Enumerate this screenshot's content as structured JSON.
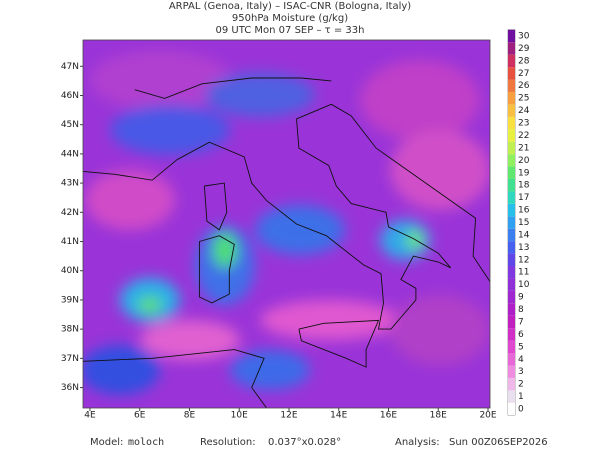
{
  "header": {
    "lines": [
      "ARPAL (Genoa, Italy)  –  ISAC-CNR (Bologna, Italy)",
      "950hPa Moisture (g/kg)",
      "09 UTC Mon 07 SEP  –  τ = 33h"
    ]
  },
  "map": {
    "xlim": [
      3.72,
      20.08
    ],
    "ylim": [
      35.3,
      47.9
    ],
    "xticks": [
      {
        "value": 4,
        "label": "4E"
      },
      {
        "value": 6,
        "label": "6E"
      },
      {
        "value": 8,
        "label": "8E"
      },
      {
        "value": 10,
        "label": "10E"
      },
      {
        "value": 12,
        "label": "12E"
      },
      {
        "value": 14,
        "label": "14E"
      },
      {
        "value": 16,
        "label": "16E"
      },
      {
        "value": 18,
        "label": "18E"
      },
      {
        "value": 20,
        "label": "20E"
      }
    ],
    "yticks": [
      {
        "value": 36,
        "label": "36N"
      },
      {
        "value": 37,
        "label": "37N"
      },
      {
        "value": 38,
        "label": "38N"
      },
      {
        "value": 39,
        "label": "39N"
      },
      {
        "value": 40,
        "label": "40N"
      },
      {
        "value": 41,
        "label": "41N"
      },
      {
        "value": 42,
        "label": "42N"
      },
      {
        "value": 43,
        "label": "43N"
      },
      {
        "value": 44,
        "label": "44N"
      },
      {
        "value": 45,
        "label": "45N"
      },
      {
        "value": 46,
        "label": "46N"
      },
      {
        "value": 47,
        "label": "47N"
      }
    ],
    "colorbar": {
      "lim": [
        -0.5,
        30.5
      ],
      "ticks": [
        0,
        1,
        2,
        3,
        4,
        5,
        6,
        7,
        8,
        9,
        10,
        11,
        12,
        13,
        14,
        15,
        16,
        17,
        18,
        19,
        20,
        21,
        22,
        23,
        24,
        25,
        26,
        27,
        28,
        29,
        30
      ],
      "colors": [
        "#ffffff",
        "#e8e0ee",
        "#f0b8e8",
        "#f08ce0",
        "#e868d8",
        "#e048d0",
        "#d030c8",
        "#c020c0",
        "#b020c8",
        "#a028d0",
        "#9030d8",
        "#8038e0",
        "#6048e8",
        "#4860f0",
        "#3c80f0",
        "#30a0f0",
        "#28c0e8",
        "#30d8c0",
        "#40e090",
        "#60e870",
        "#90f060",
        "#c0f050",
        "#e8f040",
        "#f8e040",
        "#f8c040",
        "#f8a040",
        "#f07840",
        "#e85040",
        "#d03060",
        "#a02080",
        "#7010a0"
      ]
    }
  },
  "footer": {
    "model_label": "Model:",
    "model": "moloch",
    "resolution_label": "Resolution:",
    "resolution": "0.037°x0.028°",
    "analysis_label": "Analysis:",
    "analysis": "Sun 00Z06SEP2026"
  }
}
